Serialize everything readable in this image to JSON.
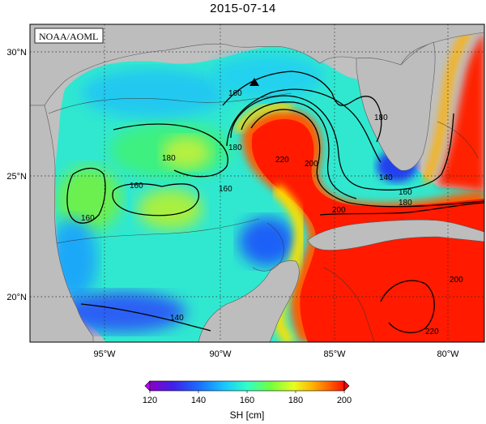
{
  "title": "2015-07-14",
  "credit": "NOAA/AOML",
  "latitude_labels": [
    "30°N",
    "25°N",
    "20°N"
  ],
  "longitude_labels": [
    "95°W",
    "90°W",
    "85°W",
    "80°W"
  ],
  "contour_labels": [
    "160",
    "160",
    "180",
    "180",
    "160",
    "160",
    "180",
    "200",
    "220",
    "200",
    "160",
    "180",
    "140",
    "200",
    "140",
    "220"
  ],
  "colorbar": {
    "title": "SH [cm]",
    "ticks": [
      "120",
      "140",
      "160",
      "180",
      "200"
    ],
    "colors": [
      "#8a00c8",
      "#3a2cf0",
      "#1e7cff",
      "#20d4ff",
      "#30ffb0",
      "#80ff40",
      "#e8ff20",
      "#ffc000",
      "#ff7000",
      "#ff1800"
    ]
  },
  "marker": "triangle-marker"
}
